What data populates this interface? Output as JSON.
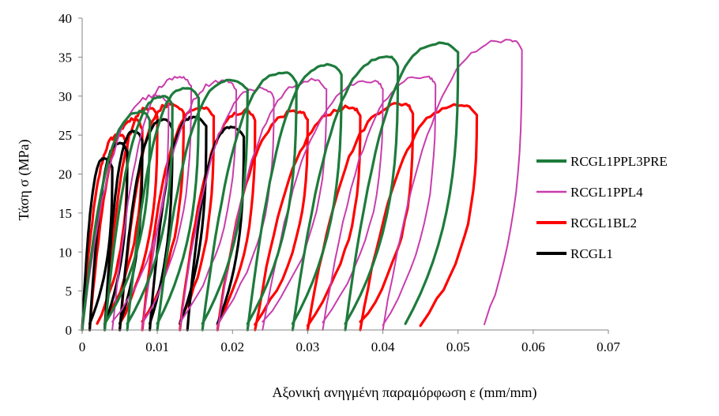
{
  "chart_data": {
    "type": "line",
    "title": "",
    "xlabel": "Αξονική ανηγμένη παραμόρφωση   ε (mm/mm)",
    "ylabel": "Τάση  σ (MPa)",
    "xlim": [
      0,
      0.07
    ],
    "ylim": [
      0,
      40
    ],
    "xticks": [
      0,
      0.01,
      0.02,
      0.03,
      0.04,
      0.05,
      0.06,
      0.07
    ],
    "xtick_labels": [
      "0",
      "0.01",
      "0.02",
      "0.03",
      "0.04",
      "0.05",
      "0.06",
      "0.07"
    ],
    "yticks": [
      0,
      5,
      10,
      15,
      20,
      25,
      30,
      35,
      40
    ],
    "ytick_labels": [
      "0",
      "5",
      "10",
      "15",
      "20",
      "25",
      "30",
      "35",
      "40"
    ],
    "grid": false,
    "legend_position": "right",
    "series": [
      {
        "name": "RCGL1PPL3PRE",
        "color": "#1e7b3c",
        "loops": [
          {
            "x_start": 0.0,
            "x_peak": 0.008,
            "x_max": 0.009,
            "x_end": 0.003,
            "y_peak": 28.0
          },
          {
            "x_start": 0.003,
            "x_peak": 0.011,
            "x_max": 0.012,
            "x_end": 0.006,
            "y_peak": 30.0
          },
          {
            "x_start": 0.006,
            "x_peak": 0.014,
            "x_max": 0.0155,
            "x_end": 0.01,
            "y_peak": 31.0
          },
          {
            "x_start": 0.01,
            "x_peak": 0.02,
            "x_max": 0.022,
            "x_end": 0.016,
            "y_peak": 32.0
          },
          {
            "x_start": 0.016,
            "x_peak": 0.027,
            "x_max": 0.0285,
            "x_end": 0.022,
            "y_peak": 33.0
          },
          {
            "x_start": 0.022,
            "x_peak": 0.033,
            "x_max": 0.0345,
            "x_end": 0.028,
            "y_peak": 34.0
          },
          {
            "x_start": 0.028,
            "x_peak": 0.041,
            "x_max": 0.042,
            "x_end": 0.035,
            "y_peak": 35.0
          },
          {
            "x_start": 0.035,
            "x_peak": 0.048,
            "x_max": 0.05,
            "x_end": 0.043,
            "y_peak": 36.8
          }
        ]
      },
      {
        "name": "RCGL1PPL4",
        "color": "#c93cac",
        "loops": [
          {
            "x_start": 0.0,
            "x_peak": 0.01,
            "x_max": 0.0115,
            "x_end": 0.004,
            "y_peak": 30.0
          },
          {
            "x_start": 0.004,
            "x_peak": 0.013,
            "x_max": 0.0145,
            "x_end": 0.008,
            "y_peak": 32.5
          },
          {
            "x_start": 0.008,
            "x_peak": 0.019,
            "x_max": 0.0205,
            "x_end": 0.013,
            "y_peak": 32.0
          },
          {
            "x_start": 0.013,
            "x_peak": 0.024,
            "x_max": 0.0255,
            "x_end": 0.018,
            "y_peak": 31.0
          },
          {
            "x_start": 0.018,
            "x_peak": 0.031,
            "x_max": 0.0325,
            "x_end": 0.024,
            "y_peak": 32.0
          },
          {
            "x_start": 0.024,
            "x_peak": 0.039,
            "x_max": 0.04,
            "x_end": 0.032,
            "y_peak": 32.0
          },
          {
            "x_start": 0.032,
            "x_peak": 0.046,
            "x_max": 0.047,
            "x_end": 0.04,
            "y_peak": 32.5
          },
          {
            "x_start": 0.04,
            "x_peak": 0.057,
            "x_max": 0.0585,
            "x_end": 0.0535,
            "y_peak": 37.2
          }
        ]
      },
      {
        "name": "RCGL1BL2",
        "color": "#ff0000",
        "loops": [
          {
            "x_start": 0.0,
            "x_peak": 0.005,
            "x_max": 0.006,
            "x_end": 0.002,
            "y_peak": 25.0
          },
          {
            "x_start": 0.001,
            "x_peak": 0.007,
            "x_max": 0.008,
            "x_end": 0.003,
            "y_peak": 27.0
          },
          {
            "x_start": 0.003,
            "x_peak": 0.009,
            "x_max": 0.01,
            "x_end": 0.005,
            "y_peak": 28.5
          },
          {
            "x_start": 0.005,
            "x_peak": 0.012,
            "x_max": 0.0135,
            "x_end": 0.008,
            "y_peak": 29.0
          },
          {
            "x_start": 0.008,
            "x_peak": 0.016,
            "x_max": 0.0175,
            "x_end": 0.013,
            "y_peak": 28.5
          },
          {
            "x_start": 0.013,
            "x_peak": 0.022,
            "x_max": 0.023,
            "x_end": 0.018,
            "y_peak": 28.0
          },
          {
            "x_start": 0.018,
            "x_peak": 0.029,
            "x_max": 0.03,
            "x_end": 0.023,
            "y_peak": 28.0
          },
          {
            "x_start": 0.023,
            "x_peak": 0.036,
            "x_max": 0.037,
            "x_end": 0.03,
            "y_peak": 28.5
          },
          {
            "x_start": 0.03,
            "x_peak": 0.043,
            "x_max": 0.044,
            "x_end": 0.037,
            "y_peak": 29.0
          },
          {
            "x_start": 0.037,
            "x_peak": 0.0505,
            "x_max": 0.0525,
            "x_end": 0.045,
            "y_peak": 28.8
          }
        ]
      },
      {
        "name": "RCGL1",
        "color": "#000000",
        "loops": [
          {
            "x_start": 0.0,
            "x_peak": 0.003,
            "x_max": 0.004,
            "x_end": 0.001,
            "y_peak": 22.0
          },
          {
            "x_start": 0.001,
            "x_peak": 0.005,
            "x_max": 0.006,
            "x_end": 0.003,
            "y_peak": 24.0
          },
          {
            "x_start": 0.003,
            "x_peak": 0.007,
            "x_max": 0.008,
            "x_end": 0.005,
            "y_peak": 25.5
          },
          {
            "x_start": 0.005,
            "x_peak": 0.011,
            "x_max": 0.012,
            "x_end": 0.009,
            "y_peak": 27.0
          },
          {
            "x_start": 0.009,
            "x_peak": 0.015,
            "x_max": 0.0165,
            "x_end": 0.013,
            "y_peak": 27.3
          },
          {
            "x_start": 0.014,
            "x_peak": 0.02,
            "x_max": 0.0215,
            "x_end": 0.018,
            "y_peak": 26.0
          }
        ]
      }
    ]
  }
}
